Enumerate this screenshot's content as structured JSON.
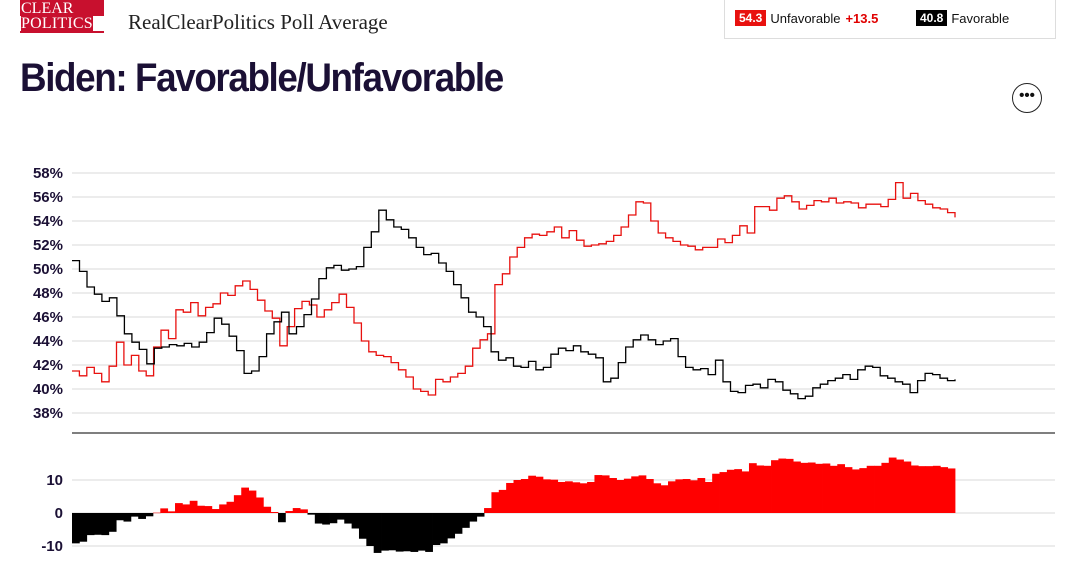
{
  "logo": {
    "line1": "CLEAR",
    "line2": "POLITICS"
  },
  "site_title": "RealClearPolitics Poll Average",
  "page_title": "Biden: Favorable/Unfavorable",
  "legend": {
    "unfavorable": {
      "value": "54.3",
      "label": "Unfavorable",
      "spread": "+13.5",
      "color": "#e8110f"
    },
    "favorable": {
      "value": "40.8",
      "label": "Favorable",
      "color": "#000000"
    }
  },
  "more_button_label": "•••",
  "chart_data": [
    {
      "type": "line",
      "y_ticks": [
        "58%",
        "56%",
        "54%",
        "52%",
        "50%",
        "48%",
        "46%",
        "44%",
        "42%",
        "40%",
        "38%"
      ],
      "ylim": [
        38,
        58
      ],
      "grid": true,
      "series": [
        {
          "name": "Unfavorable",
          "color": "#e8110f",
          "values": [
            41.5,
            41.1,
            41.8,
            41.3,
            40.6,
            41.9,
            43.9,
            42.0,
            42.8,
            41.5,
            41.1,
            43.5,
            44.9,
            44.2,
            46.6,
            46.4,
            47.2,
            46.1,
            46.8,
            47.1,
            48.0,
            47.8,
            48.6,
            49.0,
            48.3,
            47.4,
            46.5,
            45.9,
            43.6,
            45.2,
            46.7,
            47.3,
            47.0,
            46.0,
            46.6,
            47.2,
            47.9,
            46.8,
            45.5,
            44.0,
            43.1,
            42.8,
            42.7,
            42.2,
            41.6,
            41.0,
            40.0,
            39.8,
            39.5,
            40.8,
            40.6,
            41.0,
            41.3,
            41.9,
            43.4,
            44.1,
            44.6,
            48.7,
            49.6,
            51.0,
            51.8,
            52.6,
            52.9,
            52.8,
            53.1,
            53.5,
            52.6,
            53.2,
            52.4,
            51.9,
            52.0,
            52.1,
            52.3,
            52.8,
            53.5,
            54.5,
            55.6,
            55.5,
            54.0,
            53.0,
            52.6,
            52.3,
            52.0,
            51.9,
            51.6,
            51.8,
            51.8,
            52.5,
            52.2,
            52.8,
            53.6,
            53.0,
            55.2,
            55.2,
            54.9,
            55.9,
            56.1,
            55.6,
            55.0,
            55.3,
            55.7,
            55.6,
            55.9,
            55.5,
            55.6,
            55.5,
            55.1,
            55.4,
            55.4,
            55.2,
            55.8,
            57.2,
            55.9,
            56.3,
            55.7,
            55.4,
            55.1,
            55.0,
            54.7,
            54.3
          ]
        },
        {
          "name": "Favorable",
          "color": "#000000",
          "values": [
            50.7,
            49.8,
            48.5,
            47.9,
            47.3,
            47.6,
            46.1,
            44.6,
            43.9,
            43.3,
            42.1,
            43.4,
            43.5,
            43.7,
            43.6,
            43.8,
            43.5,
            43.9,
            44.7,
            45.9,
            45.4,
            44.4,
            43.2,
            41.3,
            41.5,
            42.7,
            44.6,
            45.6,
            46.4,
            44.6,
            45.2,
            46.2,
            47.5,
            49.2,
            50.1,
            50.3,
            49.9,
            50.0,
            50.2,
            51.8,
            53.1,
            54.9,
            54.1,
            53.5,
            53.3,
            52.6,
            51.8,
            51.2,
            51.3,
            50.5,
            49.8,
            48.7,
            47.6,
            46.4,
            46.0,
            45.2,
            43.1,
            42.4,
            42.6,
            41.9,
            41.8,
            42.3,
            41.6,
            41.8,
            42.9,
            43.4,
            43.2,
            43.6,
            43.1,
            42.9,
            42.6,
            40.6,
            40.9,
            42.2,
            43.5,
            44.1,
            44.5,
            44.1,
            43.7,
            44.0,
            44.2,
            42.7,
            41.8,
            41.6,
            41.7,
            41.2,
            42.4,
            40.6,
            39.8,
            39.7,
            40.3,
            40.4,
            40.1,
            40.8,
            40.6,
            39.9,
            39.6,
            39.2,
            39.4,
            40.1,
            40.4,
            40.7,
            40.9,
            41.2,
            40.8,
            41.6,
            41.9,
            41.8,
            41.1,
            40.9,
            40.6,
            40.4,
            39.7,
            40.7,
            41.3,
            41.2,
            40.9,
            40.7,
            40.8
          ]
        }
      ]
    },
    {
      "type": "bar",
      "y_ticks": [
        "10",
        "0",
        "-10"
      ],
      "ylim": [
        -14.5,
        18
      ],
      "grid": true,
      "series": [
        {
          "name": "Spread",
          "positive_color": "#ff0000",
          "negative_color": "#000000",
          "values": [
            -9.2,
            -8.7,
            -6.7,
            -6.6,
            -6.7,
            -5.7,
            -2.2,
            -2.6,
            -1.1,
            -1.8,
            -1.0,
            0.1,
            1.4,
            0.5,
            3.0,
            2.6,
            3.7,
            2.2,
            2.1,
            1.2,
            2.6,
            3.4,
            5.4,
            7.7,
            6.8,
            4.7,
            1.9,
            0.3,
            -2.8,
            0.6,
            1.5,
            1.1,
            -0.5,
            -3.2,
            -3.5,
            -3.1,
            -2.0,
            -3.2,
            -4.7,
            -7.8,
            -10.0,
            -12.1,
            -11.4,
            -11.3,
            -11.7,
            -11.6,
            -11.8,
            -11.4,
            -11.8,
            -9.7,
            -9.2,
            -7.7,
            -6.3,
            -4.5,
            -2.6,
            -1.1,
            1.5,
            6.3,
            7.0,
            9.1,
            10.0,
            10.3,
            11.3,
            11.0,
            10.2,
            10.1,
            9.4,
            9.6,
            9.3,
            9.0,
            9.4,
            11.5,
            11.4,
            10.6,
            10.0,
            10.4,
            11.1,
            11.4,
            10.3,
            9.0,
            8.4,
            9.6,
            10.2,
            10.3,
            9.9,
            10.6,
            9.4,
            11.9,
            12.4,
            13.1,
            13.3,
            12.6,
            15.1,
            14.4,
            14.3,
            16.0,
            16.5,
            16.4,
            15.6,
            15.2,
            15.3,
            14.9,
            15.0,
            14.3,
            14.8,
            13.9,
            13.2,
            13.6,
            14.3,
            14.3,
            15.2,
            16.8,
            16.2,
            15.6,
            14.4,
            14.2,
            14.2,
            14.3,
            13.9,
            13.5
          ]
        }
      ]
    }
  ]
}
